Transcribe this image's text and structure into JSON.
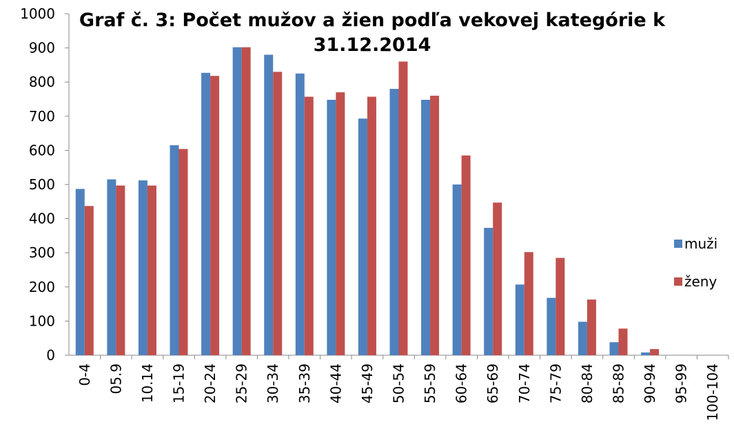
{
  "chart_data": {
    "type": "bar",
    "title": "Graf č. 3: Počet mužov a žien podľa vekovej kategórie k 31.12.2014",
    "categories": [
      "0-4",
      "05.9",
      "10.14",
      "15-19",
      "20-24",
      "25-29",
      "30-34",
      "35-39",
      "40-44",
      "45-49",
      "50-54",
      "55-59",
      "60-64",
      "65-69",
      "70-74",
      "75-79",
      "80-84",
      "85-89",
      "90-94",
      "95-99",
      "100-104"
    ],
    "series": [
      {
        "name": "muži",
        "color": "#4f81bd",
        "values": [
          487,
          515,
          512,
          615,
          827,
          902,
          880,
          825,
          748,
          693,
          780,
          748,
          500,
          373,
          207,
          168,
          98,
          38,
          8,
          0,
          0
        ]
      },
      {
        "name": "ženy",
        "color": "#c0504d",
        "values": [
          437,
          497,
          497,
          604,
          818,
          902,
          830,
          757,
          770,
          757,
          860,
          760,
          585,
          447,
          302,
          285,
          163,
          78,
          18,
          0,
          0
        ]
      }
    ],
    "ylim": [
      0,
      1000
    ],
    "yticks": [
      0,
      100,
      200,
      300,
      400,
      500,
      600,
      700,
      800,
      900,
      1000
    ],
    "legend": "right"
  }
}
